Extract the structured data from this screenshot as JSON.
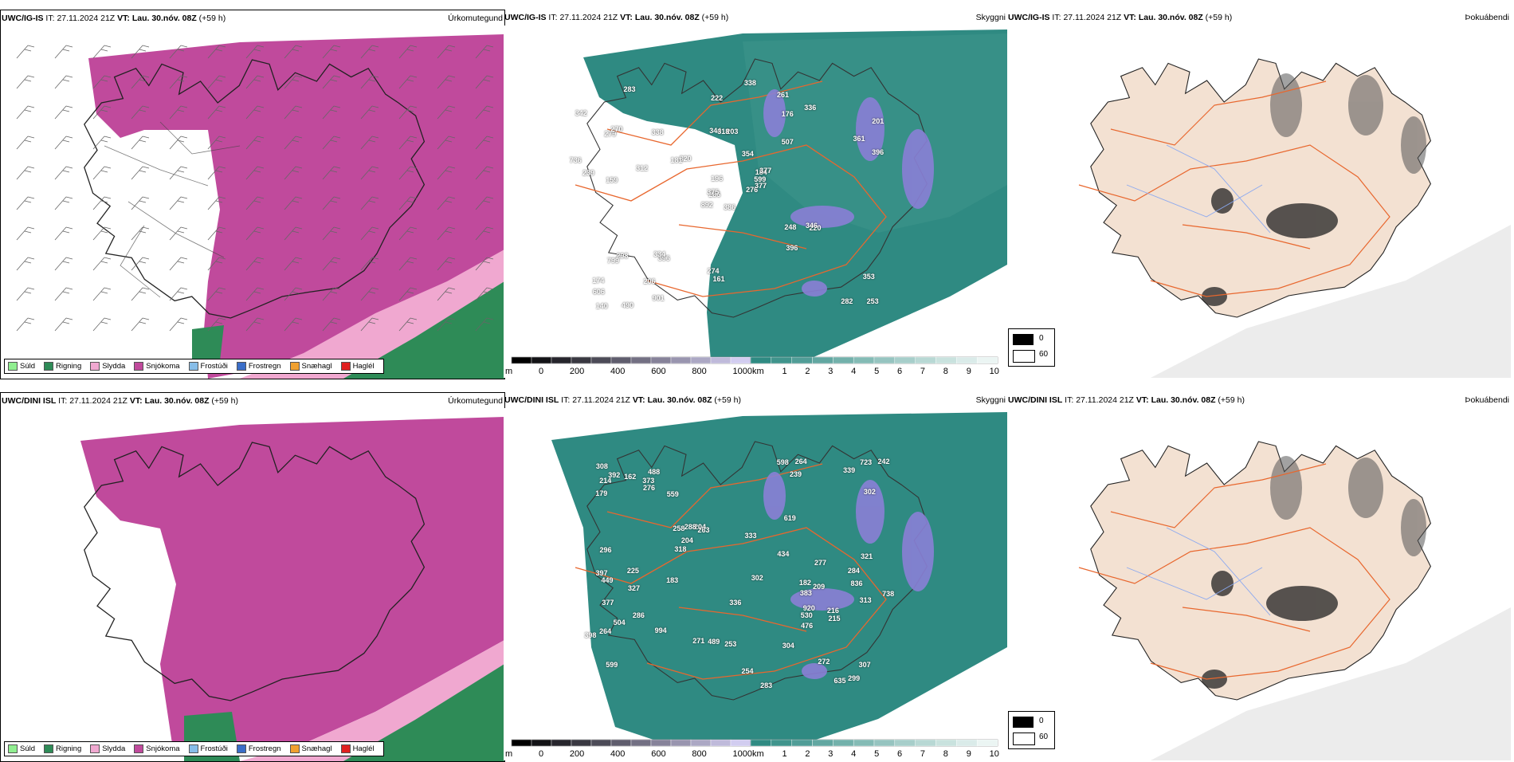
{
  "rows": [
    {
      "model": "UWC/IG-IS",
      "it_label": "IT:",
      "it_value": "27.11.2024 21Z",
      "vt_label": "VT:",
      "vt_value": "Lau. 30.nóv. 08Z",
      "lead": "(+59 h)",
      "labels": [
        "386",
        "279",
        "286",
        "174",
        "184",
        "396",
        "261",
        "203",
        "176",
        "276",
        "283",
        "253",
        "159",
        "201",
        "892",
        "507",
        "490",
        "344",
        "354",
        "298",
        "320",
        "606",
        "206",
        "318",
        "377",
        "220",
        "270",
        "222",
        "239",
        "248",
        "396",
        "375",
        "274",
        "196",
        "338",
        "336",
        "334",
        "282",
        "353",
        "346",
        "338",
        "181",
        "312",
        "396",
        "901",
        "736",
        "599",
        "140",
        "161",
        "377",
        "799",
        "361",
        "342"
      ]
    },
    {
      "model": "UWC/DINI ISL",
      "it_label": "IT:",
      "it_value": "27.11.2024 21Z",
      "vt_label": "VT:",
      "vt_value": "Lau. 30.nóv. 08Z",
      "lead": "(+59 h)",
      "labels": [
        "383",
        "836",
        "599",
        "488",
        "263",
        "272",
        "264",
        "239",
        "258",
        "283",
        "179",
        "397",
        "214",
        "307",
        "271",
        "321",
        "336",
        "302",
        "204",
        "286",
        "242",
        "339",
        "318",
        "313",
        "598",
        "373",
        "920",
        "449",
        "276",
        "277",
        "254",
        "304",
        "204",
        "183",
        "284",
        "215",
        "530",
        "225",
        "253",
        "504",
        "302",
        "264",
        "299",
        "489",
        "216",
        "994",
        "398",
        "392",
        "434",
        "296",
        "738",
        "288",
        "723",
        "182",
        "476",
        "635",
        "619",
        "308",
        "327",
        "162",
        "209",
        "559",
        "333",
        "377"
      ]
    }
  ],
  "panel_titles": {
    "precip": "Úrkomutegund",
    "cloud": "Skyggni",
    "fog": "Þokuábendi"
  },
  "precip_legend": [
    {
      "label": "Súld",
      "color": "#90ee90"
    },
    {
      "label": "Rigning",
      "color": "#2e8b57"
    },
    {
      "label": "Slydda",
      "color": "#f0a8d0"
    },
    {
      "label": "Snjókoma",
      "color": "#c04a9c"
    },
    {
      "label": "Frostúði",
      "color": "#87bde8"
    },
    {
      "label": "Frostregn",
      "color": "#3a6ec8"
    },
    {
      "label": "Snæhagl",
      "color": "#f0a030"
    },
    {
      "label": "Haglél",
      "color": "#e02020"
    }
  ],
  "cloud_base_scale": {
    "unit": "m",
    "ticks": [
      "0",
      "200",
      "400",
      "600",
      "800",
      "1000"
    ]
  },
  "visibility_scale": {
    "unit": "km",
    "ticks": [
      "1",
      "2",
      "3",
      "4",
      "5",
      "6",
      "7",
      "8",
      "9",
      "10"
    ]
  },
  "fog_scale": {
    "ticks": [
      "0",
      "60"
    ]
  },
  "colors": {
    "snow": "#c04a9c",
    "rain": "#2e8b57",
    "sleet": "#f0a8d0",
    "teal": "#2f8a82",
    "tan": "#f3e1d2",
    "road": "#e8672e"
  }
}
